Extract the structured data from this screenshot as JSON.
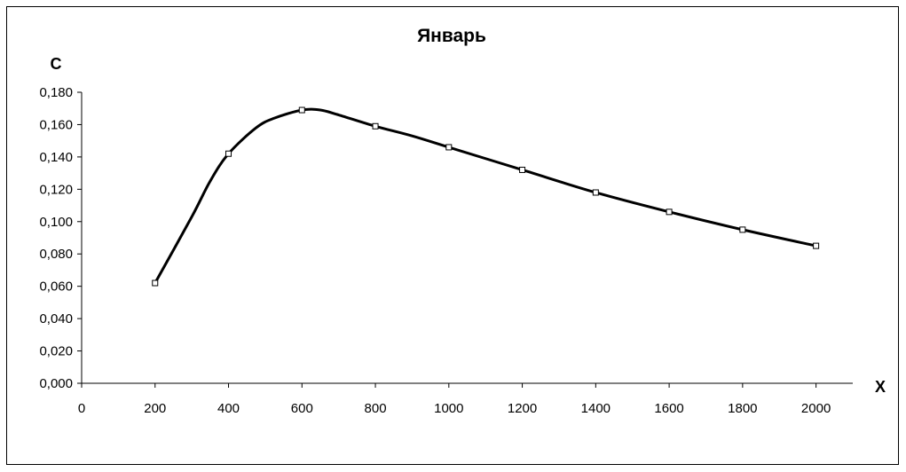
{
  "chart_data": {
    "type": "line",
    "title": "Январь",
    "xlabel": "X",
    "ylabel": "C",
    "xlim": [
      0,
      2100
    ],
    "ylim": [
      0,
      0.18
    ],
    "x_ticks": [
      "0",
      "200",
      "400",
      "600",
      "800",
      "1000",
      "1200",
      "1400",
      "1600",
      "1800",
      "2000"
    ],
    "x_tick_values": [
      0,
      200,
      400,
      600,
      800,
      1000,
      1200,
      1400,
      1600,
      1800,
      2000
    ],
    "y_ticks": [
      "0,000",
      "0,020",
      "0,040",
      "0,060",
      "0,080",
      "0,100",
      "0,120",
      "0,140",
      "0,160",
      "0,180"
    ],
    "y_tick_values": [
      0,
      0.02,
      0.04,
      0.06,
      0.08,
      0.1,
      0.12,
      0.14,
      0.16,
      0.18
    ],
    "grid": false,
    "series": [
      {
        "x": [
          200,
          300,
          350,
          400,
          475,
          525,
          600,
          650,
          700,
          800,
          900,
          1000,
          1200,
          1400,
          1600,
          1800,
          2000
        ],
        "y": [
          0.062,
          0.103,
          0.125,
          0.142,
          0.158,
          0.164,
          0.169,
          0.169,
          0.166,
          0.159,
          0.153,
          0.146,
          0.132,
          0.118,
          0.106,
          0.095,
          0.085
        ],
        "marker_x": [
          200,
          400,
          600,
          800,
          1000,
          1200,
          1400,
          1600,
          1800,
          2000
        ],
        "marker_y": [
          0.062,
          0.142,
          0.169,
          0.159,
          0.146,
          0.132,
          0.118,
          0.106,
          0.095,
          0.085
        ],
        "color": "#000000"
      }
    ]
  }
}
